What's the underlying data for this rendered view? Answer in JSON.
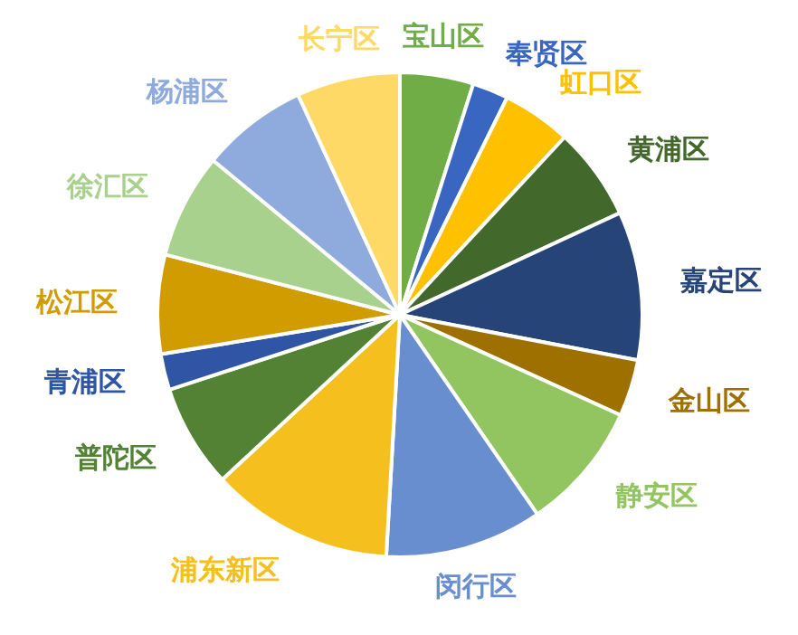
{
  "chart_data": {
    "type": "pie",
    "categories": [
      "宝山区",
      "奉贤区",
      "虹口区",
      "黄浦区",
      "嘉定区",
      "金山区",
      "静安区",
      "闵行区",
      "浦东新区",
      "普陀区",
      "青浦区",
      "松江区",
      "徐汇区",
      "杨浦区",
      "长宁区"
    ],
    "values": [
      4.9,
      2.4,
      4.6,
      6.2,
      9.9,
      3.8,
      8.6,
      10.5,
      12.2,
      6.9,
      2.4,
      6.6,
      7.0,
      7.1,
      6.9
    ],
    "colors": [
      "#70ad47",
      "#3866c0",
      "#ffc000",
      "#43682b",
      "#264478",
      "#9e7000",
      "#92c560",
      "#698ed0",
      "#f5c01e",
      "#548235",
      "#2f55a4",
      "#d09c00",
      "#a9d18e",
      "#8faadc",
      "#ffd966"
    ],
    "legend": false
  }
}
